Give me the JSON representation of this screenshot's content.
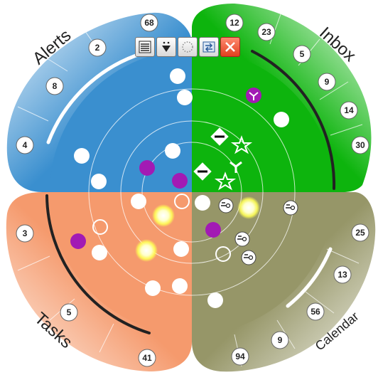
{
  "quadrants": [
    {
      "id": "alerts",
      "label": "Alerts",
      "color": "#3a8fcf",
      "badges": [
        "68",
        "2",
        "8",
        "4"
      ]
    },
    {
      "id": "inbox",
      "label": "Inbox",
      "color": "#0db40d",
      "badges": [
        "12",
        "23",
        "5",
        "9",
        "14",
        "30"
      ]
    },
    {
      "id": "tasks",
      "label": "Tasks",
      "color": "#f59a6d",
      "badges": [
        "3",
        "5",
        "41"
      ]
    },
    {
      "id": "calendar",
      "label": "Calendar",
      "color": "#969668",
      "badges": [
        "25",
        "13",
        "56",
        "9",
        "94"
      ]
    }
  ],
  "toolbar": {
    "buttons": [
      {
        "name": "list-view-button",
        "icon": "list-icon"
      },
      {
        "name": "filter-button",
        "icon": "filter-down-icon"
      },
      {
        "name": "radar-view-button",
        "icon": "dotted-circle-icon"
      },
      {
        "name": "swap-view-button",
        "icon": "swap-icon"
      },
      {
        "name": "close-button",
        "icon": "close-icon"
      }
    ]
  },
  "colors": {
    "marker_white": "#ffffff",
    "marker_purple": "#a21ab4",
    "marker_glow": "#ffff66"
  }
}
